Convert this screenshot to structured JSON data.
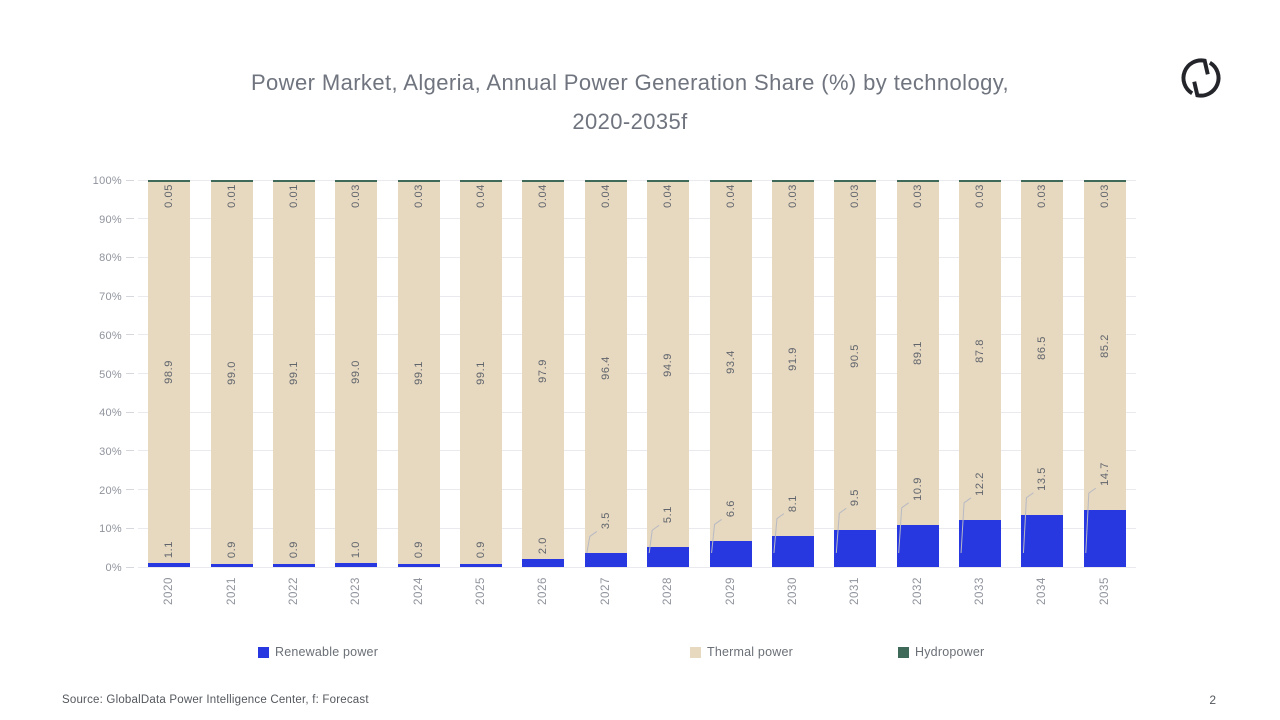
{
  "slide": {
    "title": "Power Market, Algeria, Annual Power Generation Share (%) by technology,\n2020-2035f",
    "source": "Source: GlobalData Power Intelligence Center, f: Forecast",
    "page_number": "2"
  },
  "legend": [
    {
      "label": "Renewable power",
      "color": "#2838e0"
    },
    {
      "label": "Thermal power",
      "color": "#e7d8c0"
    },
    {
      "label": "Hydropower",
      "color": "#3f6a5a"
    }
  ],
  "chart_data": {
    "type": "bar",
    "stacked": true,
    "title": "Power Market, Algeria, Annual Power Generation Share (%) by technology, 2020-2035f",
    "xlabel": "",
    "ylabel": "",
    "ylim": [
      0,
      100
    ],
    "grid": true,
    "legend_position": "bottom",
    "yticks": [
      "0%",
      "10%",
      "20%",
      "30%",
      "40%",
      "50%",
      "60%",
      "70%",
      "80%",
      "90%",
      "100%"
    ],
    "categories": [
      "2020",
      "2021",
      "2022",
      "2023",
      "2024",
      "2025",
      "2026",
      "2027",
      "2028",
      "2029",
      "2030",
      "2031",
      "2032",
      "2033",
      "2034",
      "2035"
    ],
    "series": [
      {
        "name": "Renewable power",
        "color": "#2838e0",
        "values": [
          1.1,
          0.9,
          0.9,
          1.0,
          0.9,
          0.9,
          2.0,
          3.5,
          5.1,
          6.6,
          8.1,
          9.5,
          10.9,
          12.2,
          13.5,
          14.7
        ],
        "labels": [
          "1.1",
          "0.9",
          "0.9",
          "1.0",
          "0.9",
          "0.9",
          "2.0",
          "3.5",
          "5.1",
          "6.6",
          "8.1",
          "9.5",
          "10.9",
          "12.2",
          "13.5",
          "14.7"
        ]
      },
      {
        "name": "Thermal power",
        "color": "#e7d8c0",
        "values": [
          98.9,
          99.0,
          99.1,
          99.0,
          99.1,
          99.1,
          97.9,
          96.4,
          94.9,
          93.4,
          91.9,
          90.5,
          89.1,
          87.8,
          86.5,
          85.2
        ],
        "labels": [
          "98.9",
          "99.0",
          "99.1",
          "99.0",
          "99.1",
          "99.1",
          "97.9",
          "96.4",
          "94.9",
          "93.4",
          "91.9",
          "90.5",
          "89.1",
          "87.8",
          "86.5",
          "85.2"
        ]
      },
      {
        "name": "Hydropower",
        "color": "#3f6a5a",
        "values": [
          0.05,
          0.01,
          0.01,
          0.03,
          0.03,
          0.04,
          0.04,
          0.04,
          0.04,
          0.04,
          0.03,
          0.03,
          0.03,
          0.03,
          0.03,
          0.03
        ],
        "labels": [
          "0.05",
          "0.01",
          "0.01",
          "0.03",
          "0.03",
          "0.04",
          "0.04",
          "0.04",
          "0.04",
          "0.04",
          "0.03",
          "0.03",
          "0.03",
          "0.03",
          "0.03",
          "0.03"
        ]
      }
    ]
  }
}
